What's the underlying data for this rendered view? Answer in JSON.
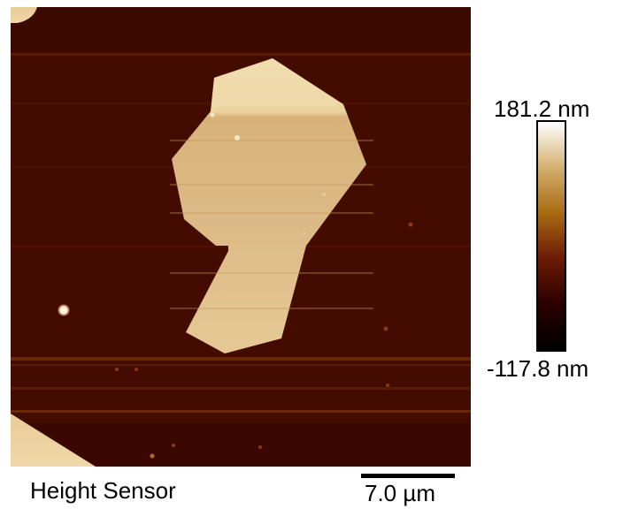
{
  "image": {
    "caption": "Height Sensor",
    "scale_bar": "7.0 µm"
  },
  "colorbar": {
    "max_label": "181.2 nm",
    "min_label": "-117.8 nm",
    "colors": [
      "#000000",
      "#2a0000",
      "#6b1a05",
      "#a86a12",
      "#d4b070",
      "#ffffff"
    ]
  }
}
